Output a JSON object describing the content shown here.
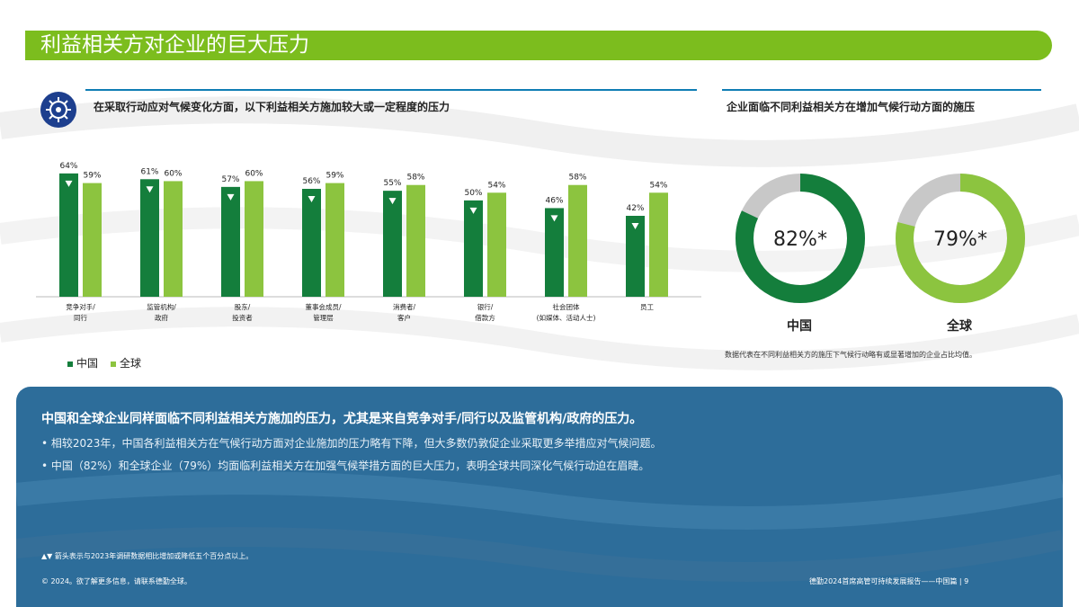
{
  "header": {
    "title": "利益相关方对企业的巨大压力"
  },
  "left_panel": {
    "heading": "在采取行动应对气候变化方面，以下利益相关方施加较大或一定程度的压力"
  },
  "right_panel": {
    "heading": "企业面临不同利益相关方在增加气候行动方面的施压",
    "note": "数据代表在不同利益相关方的施压下气候行动略有或显著增加的企业占比均值。"
  },
  "legend": {
    "china": "中国",
    "global": "全球"
  },
  "colors": {
    "china": "#147e3c",
    "global": "#8cc43f",
    "gray": "#c8c8c8",
    "accent": "#7cbd1e",
    "panel": "#2d6d9a"
  },
  "chart_data": [
    {
      "type": "bar",
      "categories": [
        [
          "竞争对手/",
          "同行"
        ],
        [
          "监管机构/",
          "政府"
        ],
        [
          "股东/",
          "投资者"
        ],
        [
          "董事会成员/",
          "管理层"
        ],
        [
          "消费者/",
          "客户"
        ],
        [
          "银行/",
          "借款方"
        ],
        [
          "社会团体",
          "(如媒体、活动人士)"
        ],
        [
          "员工"
        ]
      ],
      "series": [
        {
          "name": "中国",
          "values": [
            64,
            61,
            57,
            56,
            55,
            50,
            46,
            42
          ],
          "labels": [
            "64%",
            "61%",
            "57%",
            "56%",
            "55%",
            "50%",
            "46%",
            "42%"
          ]
        },
        {
          "name": "全球",
          "values": [
            59,
            60,
            60,
            59,
            58,
            54,
            58,
            54
          ],
          "labels": [
            "59%",
            "60%",
            "60%",
            "59%",
            "58%",
            "54%",
            "58%",
            "54%"
          ]
        }
      ],
      "ylim": [
        0,
        70
      ],
      "decrease_markers": [
        true,
        true,
        true,
        true,
        true,
        true,
        true,
        true
      ]
    },
    {
      "type": "pie",
      "charts": [
        {
          "name": "中国",
          "value": 82,
          "label": "82%*"
        },
        {
          "name": "全球",
          "value": 79,
          "label": "79%*"
        }
      ]
    }
  ],
  "panel": {
    "heading": "中国和全球企业同样面临不同利益相关方施加的压力，尤其是来自竞争对手/同行以及监管机构/政府的压力。",
    "bullets": [
      "相较2023年，中国各利益相关方在气候行动方面对企业施加的压力略有下降，但大多数仍敦促企业采取更多举措应对气候问题。",
      "中国（82%）和全球企业（79%）均面临利益相关方在加强气候举措方面的巨大压力，表明全球共同深化气候行动迫在眉睫。"
    ],
    "arrow_note": "▲▼ 箭头表示与2023年调研数据相比增加或降低五个百分点以上。",
    "footer_left": "© 2024。欲了解更多信息，请联系德勤全球。",
    "footer_right": "德勤2024首席高管可持续发展报告——中国篇 | 9"
  }
}
